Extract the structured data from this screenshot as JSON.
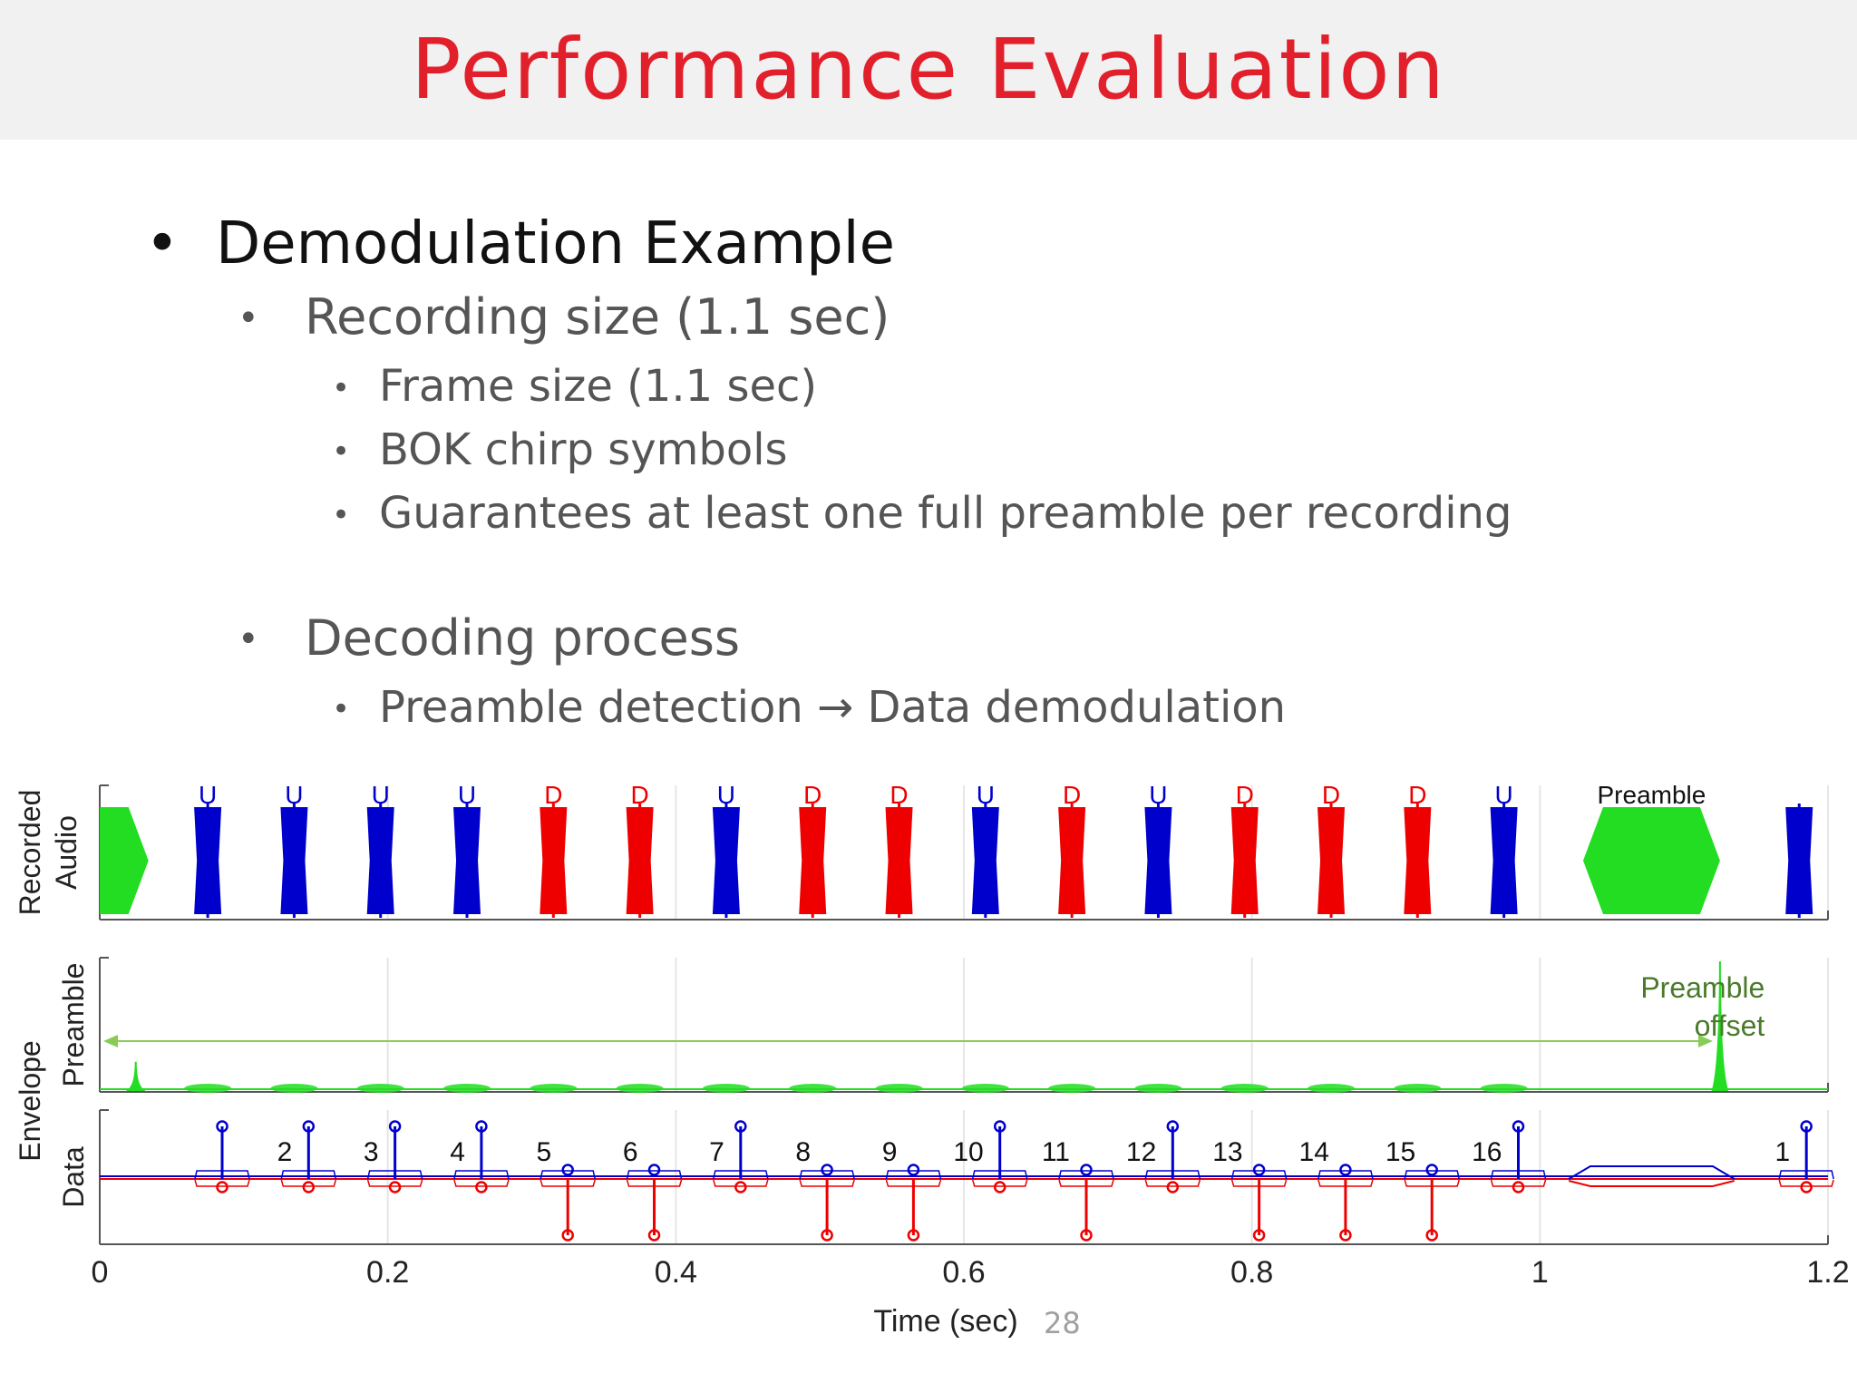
{
  "slide": {
    "title": "Performance Evaluation",
    "page_number": "28"
  },
  "bullets": {
    "b1": "Demodulation Example",
    "b1_1": "Recording size (1.1 sec)",
    "b1_1_1": "Frame size (1.1 sec)",
    "b1_1_2": "BOK chirp symbols",
    "b1_1_3": "Guarantees at least one full preamble per recording",
    "b1_2": "Decoding process",
    "b1_2_1": "Preamble detection → Data demodulation",
    "bullet_char": "•"
  },
  "chart_data": {
    "type": "line",
    "xlabel": "Time (sec)",
    "xlim": [
      0,
      1.2
    ],
    "xticks": [
      "0",
      "0.2",
      "0.4",
      "0.6",
      "0.8",
      "1",
      "1.2"
    ],
    "xtick_values": [
      0,
      0.2,
      0.4,
      0.6,
      0.8,
      1.0,
      1.2
    ],
    "colors": {
      "up": "#0000cc",
      "down": "#ee0000",
      "preamble": "#22dd22",
      "annotation": "#4a7a2a",
      "arrow": "#88cc55"
    },
    "panels": {
      "recorded_audio": {
        "ylabel_lines": [
          "Recorded",
          "Audio"
        ],
        "preamble_label": "Preamble",
        "symbols": [
          {
            "label": "U",
            "t": 0.075
          },
          {
            "label": "U",
            "t": 0.135
          },
          {
            "label": "U",
            "t": 0.195
          },
          {
            "label": "U",
            "t": 0.255
          },
          {
            "label": "D",
            "t": 0.315
          },
          {
            "label": "D",
            "t": 0.375
          },
          {
            "label": "U",
            "t": 0.435
          },
          {
            "label": "D",
            "t": 0.495
          },
          {
            "label": "D",
            "t": 0.555
          },
          {
            "label": "U",
            "t": 0.615
          },
          {
            "label": "D",
            "t": 0.675
          },
          {
            "label": "U",
            "t": 0.735
          },
          {
            "label": "D",
            "t": 0.795
          },
          {
            "label": "D",
            "t": 0.855
          },
          {
            "label": "D",
            "t": 0.915
          },
          {
            "label": "U",
            "t": 0.975
          }
        ],
        "preamble_segments": [
          [
            0.0,
            0.025
          ],
          [
            1.03,
            1.125
          ]
        ],
        "trailing_symbol": {
          "label": "U",
          "t": 1.18
        }
      },
      "envelope": {
        "ylabel": "Envelope",
        "preamble_ylabel": "Preamble",
        "data_ylabel": "Data",
        "preamble_offset_label_lines": [
          "Preamble",
          "offset"
        ],
        "preamble_offset_range": [
          0.0,
          1.12
        ],
        "preamble_peaks": [
          {
            "t": 0.025,
            "height": 0.22
          },
          {
            "t": 1.125,
            "height": 1.0
          }
        ],
        "data_stems": [
          {
            "index": "",
            "t": 0.085,
            "bit": "U"
          },
          {
            "index": "2",
            "t": 0.145,
            "bit": "U"
          },
          {
            "index": "3",
            "t": 0.205,
            "bit": "U"
          },
          {
            "index": "4",
            "t": 0.265,
            "bit": "U"
          },
          {
            "index": "5",
            "t": 0.325,
            "bit": "D"
          },
          {
            "index": "6",
            "t": 0.385,
            "bit": "D"
          },
          {
            "index": "7",
            "t": 0.445,
            "bit": "U"
          },
          {
            "index": "8",
            "t": 0.505,
            "bit": "D"
          },
          {
            "index": "9",
            "t": 0.565,
            "bit": "D"
          },
          {
            "index": "10",
            "t": 0.625,
            "bit": "U"
          },
          {
            "index": "11",
            "t": 0.685,
            "bit": "D"
          },
          {
            "index": "12",
            "t": 0.745,
            "bit": "U"
          },
          {
            "index": "13",
            "t": 0.805,
            "bit": "D"
          },
          {
            "index": "14",
            "t": 0.865,
            "bit": "D"
          },
          {
            "index": "15",
            "t": 0.925,
            "bit": "D"
          },
          {
            "index": "16",
            "t": 0.985,
            "bit": "U"
          },
          {
            "index": "1",
            "t": 1.185,
            "bit": "U"
          }
        ]
      }
    }
  }
}
